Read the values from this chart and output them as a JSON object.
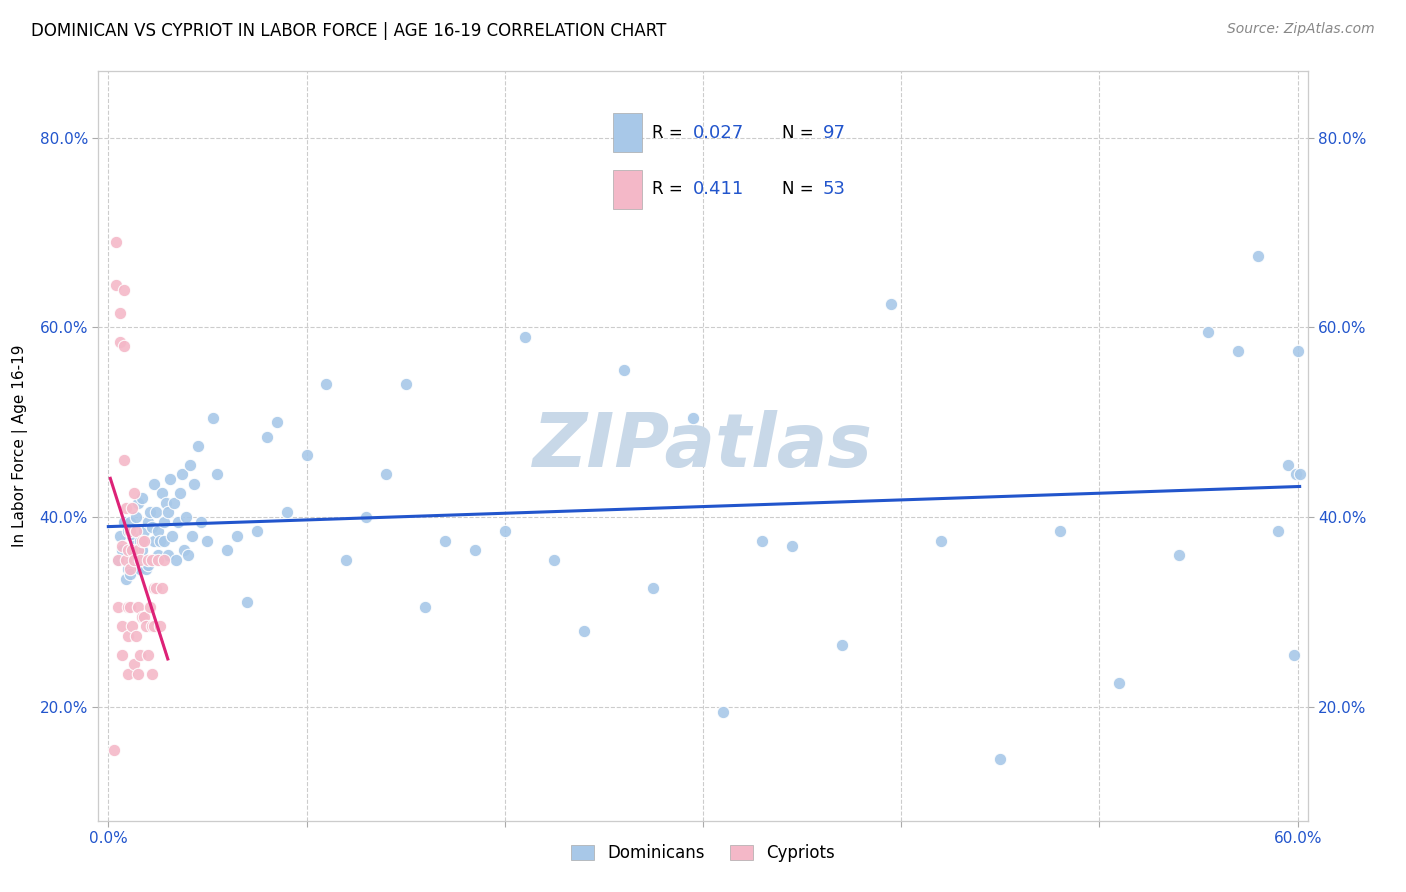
{
  "title": "DOMINICAN VS CYPRIOT IN LABOR FORCE | AGE 16-19 CORRELATION CHART",
  "source": "Source: ZipAtlas.com",
  "ylabel": "In Labor Force | Age 16-19",
  "xlim": [
    -0.005,
    0.605
  ],
  "ylim": [
    0.08,
    0.87
  ],
  "xticks": [
    0.0,
    0.1,
    0.2,
    0.3,
    0.4,
    0.5,
    0.6
  ],
  "xticklabels": [
    "0.0%",
    "",
    "",
    "",
    "",
    "",
    "60.0%"
  ],
  "yticks": [
    0.2,
    0.4,
    0.6,
    0.8
  ],
  "yticklabels": [
    "20.0%",
    "40.0%",
    "60.0%",
    "80.0%"
  ],
  "legend_r_blue": "0.027",
  "legend_n_blue": "97",
  "legend_r_pink": "0.411",
  "legend_n_pink": "53",
  "blue_color": "#a8c8e8",
  "pink_color": "#f4b8c8",
  "trend_blue_color": "#2255cc",
  "trend_pink_color": "#dd2277",
  "watermark_color": "#c8d8e8",
  "watermark": "ZIPatlas",
  "dominicans_x": [
    0.005,
    0.006,
    0.007,
    0.008,
    0.009,
    0.01,
    0.01,
    0.011,
    0.011,
    0.012,
    0.012,
    0.013,
    0.014,
    0.015,
    0.015,
    0.016,
    0.016,
    0.017,
    0.017,
    0.018,
    0.019,
    0.02,
    0.02,
    0.021,
    0.022,
    0.023,
    0.023,
    0.024,
    0.025,
    0.025,
    0.026,
    0.027,
    0.028,
    0.028,
    0.029,
    0.03,
    0.03,
    0.031,
    0.032,
    0.033,
    0.034,
    0.035,
    0.036,
    0.037,
    0.038,
    0.039,
    0.04,
    0.041,
    0.042,
    0.043,
    0.045,
    0.047,
    0.05,
    0.053,
    0.055,
    0.06,
    0.065,
    0.07,
    0.075,
    0.08,
    0.085,
    0.09,
    0.1,
    0.11,
    0.12,
    0.13,
    0.14,
    0.15,
    0.16,
    0.17,
    0.185,
    0.2,
    0.21,
    0.225,
    0.24,
    0.26,
    0.275,
    0.295,
    0.31,
    0.33,
    0.345,
    0.37,
    0.395,
    0.42,
    0.45,
    0.48,
    0.51,
    0.54,
    0.555,
    0.57,
    0.58,
    0.59,
    0.595,
    0.598,
    0.599,
    0.6,
    0.601
  ],
  "dominicans_y": [
    0.355,
    0.38,
    0.365,
    0.395,
    0.335,
    0.385,
    0.345,
    0.395,
    0.34,
    0.38,
    0.355,
    0.37,
    0.4,
    0.415,
    0.355,
    0.345,
    0.375,
    0.365,
    0.42,
    0.385,
    0.345,
    0.395,
    0.35,
    0.405,
    0.39,
    0.375,
    0.435,
    0.405,
    0.36,
    0.385,
    0.375,
    0.425,
    0.395,
    0.375,
    0.415,
    0.405,
    0.36,
    0.44,
    0.38,
    0.415,
    0.355,
    0.395,
    0.425,
    0.445,
    0.365,
    0.4,
    0.36,
    0.455,
    0.38,
    0.435,
    0.475,
    0.395,
    0.375,
    0.505,
    0.445,
    0.365,
    0.38,
    0.31,
    0.385,
    0.485,
    0.5,
    0.405,
    0.465,
    0.54,
    0.355,
    0.4,
    0.445,
    0.54,
    0.305,
    0.375,
    0.365,
    0.385,
    0.59,
    0.355,
    0.28,
    0.555,
    0.325,
    0.505,
    0.195,
    0.375,
    0.37,
    0.265,
    0.625,
    0.375,
    0.145,
    0.385,
    0.225,
    0.36,
    0.595,
    0.575,
    0.675,
    0.385,
    0.455,
    0.255,
    0.445,
    0.575,
    0.445
  ],
  "cypriots_x": [
    0.003,
    0.004,
    0.004,
    0.005,
    0.005,
    0.006,
    0.006,
    0.007,
    0.007,
    0.007,
    0.008,
    0.008,
    0.008,
    0.009,
    0.009,
    0.01,
    0.01,
    0.01,
    0.01,
    0.011,
    0.011,
    0.011,
    0.012,
    0.012,
    0.012,
    0.013,
    0.013,
    0.013,
    0.014,
    0.014,
    0.015,
    0.015,
    0.015,
    0.016,
    0.016,
    0.017,
    0.017,
    0.018,
    0.018,
    0.019,
    0.02,
    0.02,
    0.021,
    0.022,
    0.022,
    0.022,
    0.023,
    0.023,
    0.024,
    0.025,
    0.026,
    0.027,
    0.028
  ],
  "cypriots_y": [
    0.155,
    0.69,
    0.645,
    0.355,
    0.305,
    0.615,
    0.585,
    0.37,
    0.285,
    0.255,
    0.64,
    0.58,
    0.46,
    0.41,
    0.355,
    0.365,
    0.305,
    0.275,
    0.235,
    0.385,
    0.345,
    0.305,
    0.41,
    0.365,
    0.285,
    0.425,
    0.355,
    0.245,
    0.385,
    0.275,
    0.365,
    0.305,
    0.235,
    0.355,
    0.255,
    0.375,
    0.295,
    0.375,
    0.295,
    0.285,
    0.355,
    0.255,
    0.305,
    0.355,
    0.235,
    0.285,
    0.285,
    0.325,
    0.325,
    0.355,
    0.285,
    0.325,
    0.355
  ]
}
